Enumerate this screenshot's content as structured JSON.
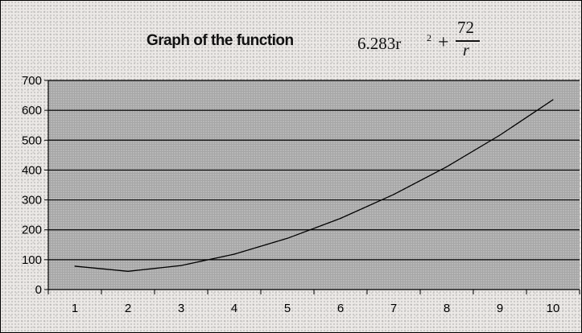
{
  "chart_data": {
    "type": "line",
    "title": "Graph of the function",
    "formula": {
      "term1": "6.283r",
      "exponent": "2",
      "operator": "+",
      "numerator": "72",
      "denominator": "r"
    },
    "x": [
      1,
      2,
      3,
      4,
      5,
      6,
      7,
      8,
      9,
      10
    ],
    "series": [
      {
        "values": [
          78.3,
          61.1,
          80.5,
          118.5,
          171.5,
          238.2,
          318.2,
          411.1,
          516.9,
          635.5
        ]
      }
    ],
    "xlim": [
      0.5,
      10.5
    ],
    "ylim": [
      0,
      700
    ],
    "yticks": [
      0,
      100,
      200,
      300,
      400,
      500,
      600,
      700
    ],
    "xticks": [
      1,
      2,
      3,
      4,
      5,
      6,
      7,
      8,
      9,
      10
    ],
    "grid": true,
    "plot_area_color": "#a6a6a6",
    "gridline_color": "#000000",
    "line_color": "#000000"
  }
}
